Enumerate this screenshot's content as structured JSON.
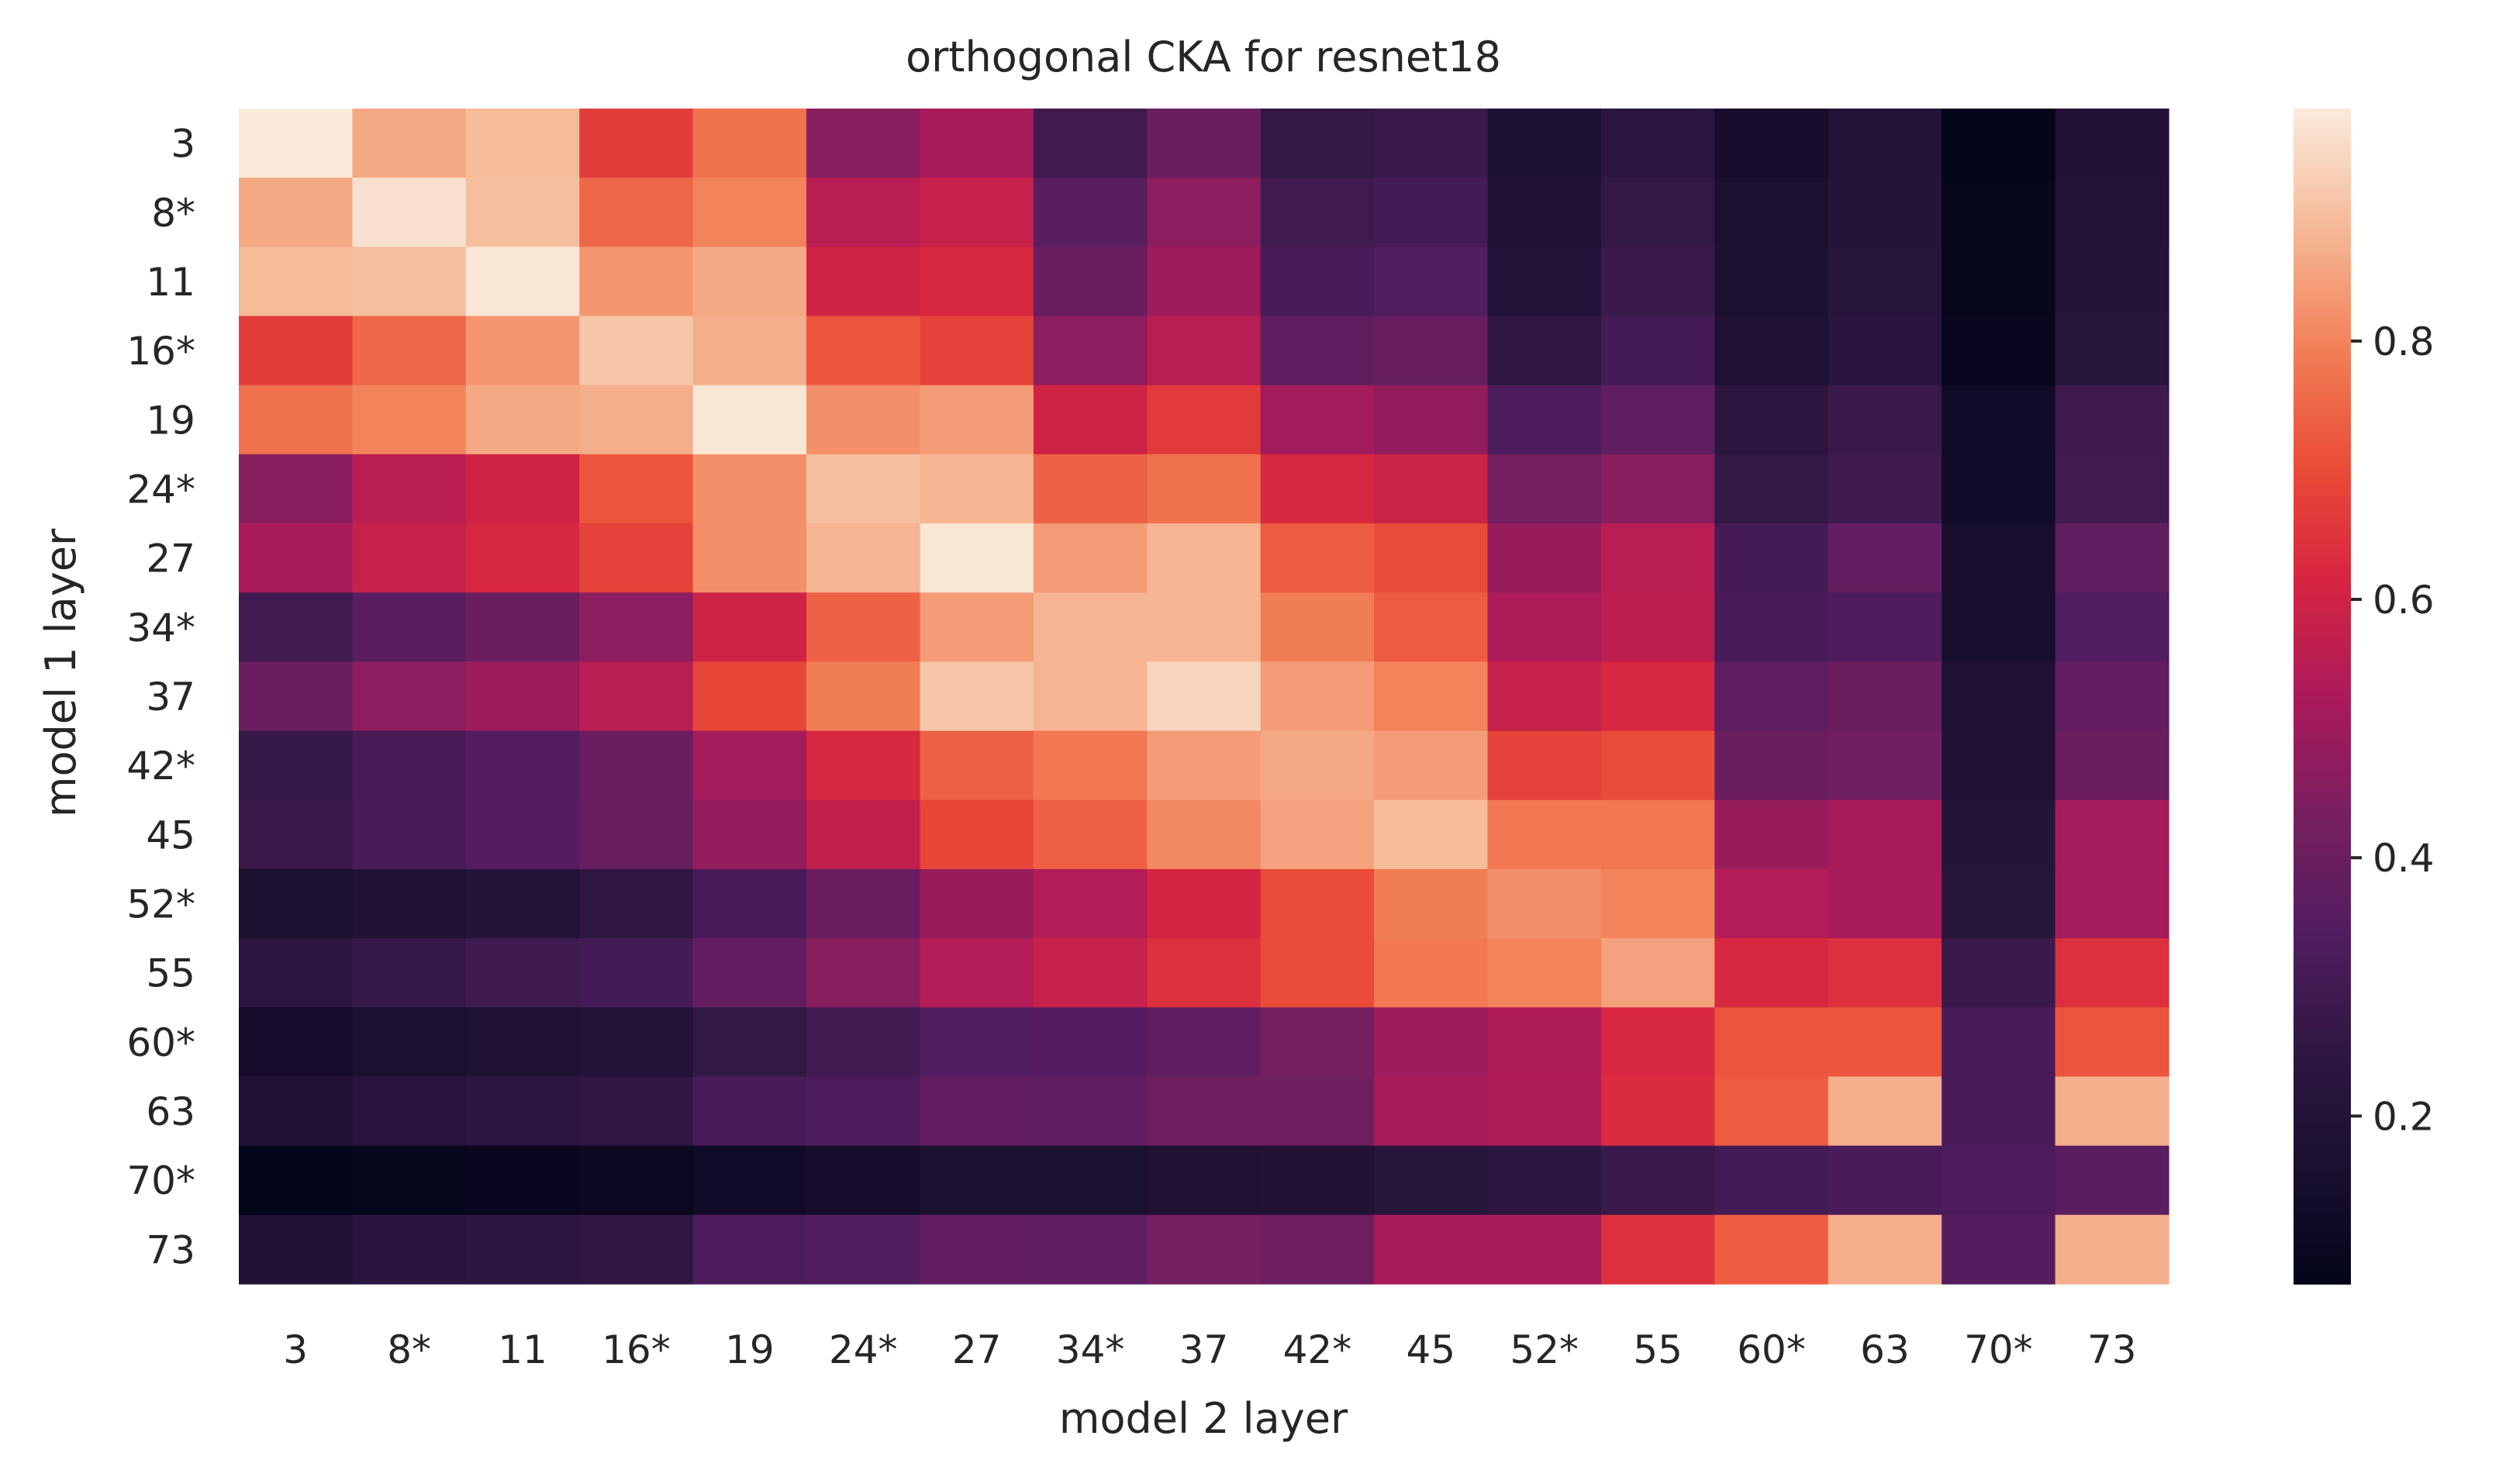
{
  "chart_data": {
    "type": "heatmap",
    "title": "orthogonal CKA for resnet18",
    "xlabel": "model 2 layer",
    "ylabel": "model 1 layer",
    "x_categories": [
      "3",
      "8*",
      "11",
      "16*",
      "19",
      "24*",
      "27",
      "34*",
      "37",
      "42*",
      "45",
      "52*",
      "55",
      "60*",
      "63",
      "70*",
      "73"
    ],
    "y_categories": [
      "3",
      "8*",
      "11",
      "16*",
      "19",
      "24*",
      "27",
      "34*",
      "37",
      "42*",
      "45",
      "52*",
      "55",
      "60*",
      "63",
      "70*",
      "73"
    ],
    "values": [
      [
        0.98,
        0.86,
        0.89,
        0.67,
        0.77,
        0.46,
        0.52,
        0.3,
        0.4,
        0.26,
        0.28,
        0.17,
        0.24,
        0.14,
        0.2,
        0.07,
        0.19
      ],
      [
        0.86,
        0.96,
        0.9,
        0.75,
        0.8,
        0.55,
        0.58,
        0.36,
        0.47,
        0.3,
        0.31,
        0.19,
        0.26,
        0.16,
        0.21,
        0.08,
        0.2
      ],
      [
        0.89,
        0.9,
        0.97,
        0.83,
        0.86,
        0.6,
        0.62,
        0.4,
        0.5,
        0.32,
        0.34,
        0.2,
        0.28,
        0.17,
        0.22,
        0.08,
        0.21
      ],
      [
        0.67,
        0.75,
        0.83,
        0.91,
        0.87,
        0.72,
        0.68,
        0.47,
        0.55,
        0.37,
        0.39,
        0.25,
        0.31,
        0.18,
        0.23,
        0.09,
        0.22
      ],
      [
        0.77,
        0.8,
        0.86,
        0.87,
        0.97,
        0.82,
        0.84,
        0.6,
        0.66,
        0.51,
        0.48,
        0.33,
        0.37,
        0.24,
        0.28,
        0.12,
        0.29
      ],
      [
        0.46,
        0.55,
        0.6,
        0.72,
        0.82,
        0.9,
        0.88,
        0.74,
        0.77,
        0.62,
        0.59,
        0.42,
        0.46,
        0.26,
        0.29,
        0.13,
        0.3
      ],
      [
        0.52,
        0.58,
        0.62,
        0.68,
        0.82,
        0.88,
        0.97,
        0.84,
        0.88,
        0.73,
        0.7,
        0.49,
        0.55,
        0.31,
        0.38,
        0.15,
        0.37
      ],
      [
        0.3,
        0.36,
        0.4,
        0.47,
        0.6,
        0.74,
        0.84,
        0.88,
        0.88,
        0.79,
        0.73,
        0.53,
        0.56,
        0.32,
        0.33,
        0.15,
        0.34
      ],
      [
        0.4,
        0.47,
        0.5,
        0.55,
        0.69,
        0.79,
        0.91,
        0.88,
        0.94,
        0.84,
        0.8,
        0.58,
        0.62,
        0.37,
        0.4,
        0.18,
        0.38
      ],
      [
        0.27,
        0.32,
        0.35,
        0.4,
        0.51,
        0.62,
        0.74,
        0.78,
        0.84,
        0.86,
        0.84,
        0.68,
        0.7,
        0.4,
        0.41,
        0.18,
        0.4
      ],
      [
        0.28,
        0.32,
        0.35,
        0.39,
        0.48,
        0.57,
        0.69,
        0.74,
        0.81,
        0.85,
        0.89,
        0.78,
        0.78,
        0.49,
        0.52,
        0.21,
        0.51
      ],
      [
        0.16,
        0.19,
        0.21,
        0.25,
        0.32,
        0.4,
        0.49,
        0.54,
        0.61,
        0.7,
        0.79,
        0.82,
        0.8,
        0.54,
        0.52,
        0.22,
        0.51
      ],
      [
        0.24,
        0.27,
        0.29,
        0.31,
        0.38,
        0.46,
        0.54,
        0.58,
        0.64,
        0.7,
        0.78,
        0.8,
        0.85,
        0.62,
        0.64,
        0.28,
        0.64
      ],
      [
        0.14,
        0.17,
        0.18,
        0.2,
        0.26,
        0.3,
        0.34,
        0.35,
        0.37,
        0.42,
        0.5,
        0.53,
        0.62,
        0.72,
        0.72,
        0.32,
        0.72
      ],
      [
        0.19,
        0.23,
        0.24,
        0.25,
        0.32,
        0.33,
        0.38,
        0.37,
        0.41,
        0.41,
        0.52,
        0.53,
        0.63,
        0.73,
        0.87,
        0.32,
        0.87
      ],
      [
        0.07,
        0.08,
        0.09,
        0.1,
        0.12,
        0.14,
        0.16,
        0.16,
        0.18,
        0.19,
        0.22,
        0.24,
        0.28,
        0.31,
        0.32,
        0.33,
        0.36
      ],
      [
        0.19,
        0.23,
        0.24,
        0.25,
        0.33,
        0.34,
        0.38,
        0.37,
        0.42,
        0.41,
        0.52,
        0.52,
        0.64,
        0.73,
        0.87,
        0.35,
        0.87
      ]
    ],
    "vmin": 0.07,
    "vmax": 0.98,
    "colormap": "rocket",
    "colorbar_ticks": [
      0.2,
      0.4,
      0.6,
      0.8
    ],
    "colorbar_tick_labels": [
      "0.2",
      "0.4",
      "0.6",
      "0.8"
    ],
    "grid": false,
    "colorbar_position": "right"
  }
}
